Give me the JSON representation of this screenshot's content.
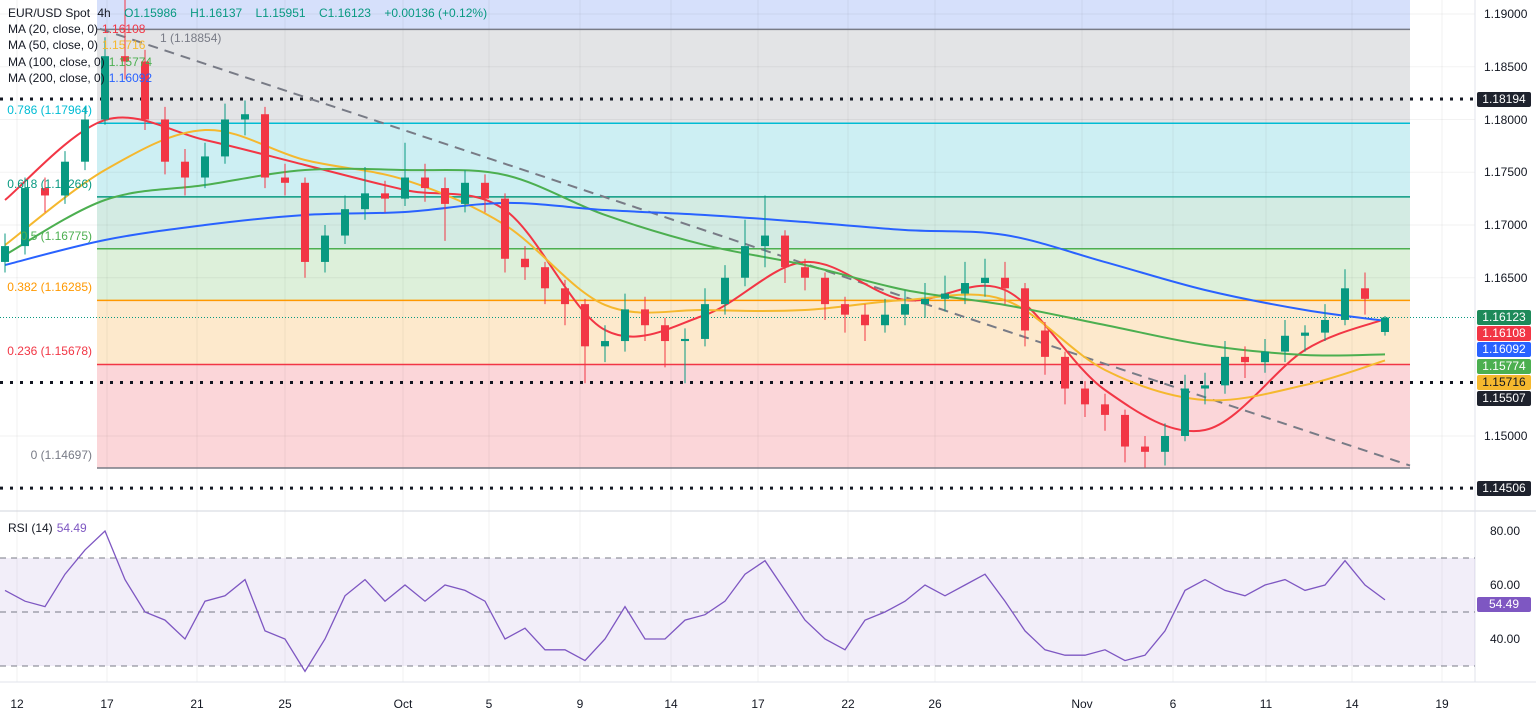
{
  "header": {
    "symbol": "EUR/USD Spot",
    "interval": "4h",
    "open": "O1.15986",
    "high": "H1.16137",
    "low": "L1.15951",
    "close": "C1.16123",
    "change": "+0.00136 (+0.12%)"
  },
  "indicators": [
    {
      "label": "MA (20, close, 0)",
      "value": "1.16108",
      "color": "#f23645"
    },
    {
      "label": "MA (50, close, 0)",
      "value": "1.15716",
      "color": "#f5b82e"
    },
    {
      "label": "MA (100, close, 0)",
      "value": "1.15774",
      "color": "#4caf50"
    },
    {
      "label": "MA (200, close, 0)",
      "value": "1.16092",
      "color": "#2962ff"
    }
  ],
  "rsi": {
    "label": "RSI (14)",
    "value": "54.49",
    "color": "#7e57c2",
    "upper": 70,
    "middle": 50,
    "lower": 30,
    "axis_ticks": [
      "80.00",
      "60.00",
      "40.00"
    ]
  },
  "price_labels": [
    {
      "text": "1.16123",
      "price": 1.16123,
      "color": "#1e8a5a"
    },
    {
      "text": "1.16108",
      "price": 1.16108,
      "color": "#f23645"
    },
    {
      "text": "1.16092",
      "price": 1.16092,
      "color": "#2962ff"
    },
    {
      "text": "1.15774",
      "price": 1.15774,
      "color": "#4caf50"
    },
    {
      "text": "1.15716",
      "price": 1.15716,
      "color": "#f5b82e"
    },
    {
      "text": "1.15507",
      "price": 1.15507,
      "color": "#1e222d"
    },
    {
      "text": "1.18194",
      "price": 1.18194,
      "color": "#1e222d"
    },
    {
      "text": "1.14506",
      "price": 1.14506,
      "color": "#1e222d"
    }
  ],
  "price_axis_ticks": [
    "1.19000",
    "1.18500",
    "1.18000",
    "1.17500",
    "1.17000",
    "1.16500",
    "1.15000"
  ],
  "fib_levels": [
    {
      "label": "1 (1.18854)",
      "price": 1.18854,
      "color": "#787b86",
      "fill": "#e3e4e6"
    },
    {
      "label": "0.786 (1.17964)",
      "price": 1.17964,
      "color": "#00bcd4",
      "fill": "#cdeff3"
    },
    {
      "label": "0.618 (1.17266)",
      "price": 1.17266,
      "color": "#089981",
      "fill": "#d3ebe3"
    },
    {
      "label": "0.5 (1.16775)",
      "price": 1.16775,
      "color": "#4caf50",
      "fill": "#ddf0da"
    },
    {
      "label": "0.382 (1.16285)",
      "price": 1.16285,
      "color": "#ff9800",
      "fill": "#fde9cc"
    },
    {
      "label": "0.236 (1.15678)",
      "price": 1.15678,
      "color": "#f23645",
      "fill": "#fbd6d9"
    },
    {
      "label": "0 (1.14697)",
      "price": 1.14697,
      "color": "#787b86",
      "fill": null
    }
  ],
  "horizontal_lines": [
    1.18194,
    1.15507,
    1.14506
  ],
  "x_axis_labels": [
    {
      "text": "12",
      "at_bar": 0.6
    },
    {
      "text": "17",
      "at_bar": 5.1
    },
    {
      "text": "21",
      "at_bar": 9.6
    },
    {
      "text": "25",
      "at_bar": 14
    },
    {
      "text": "Oct",
      "at_bar": 19.9
    },
    {
      "text": "5",
      "at_bar": 24.2
    },
    {
      "text": "9",
      "at_bar": 28.75
    },
    {
      "text": "14",
      "at_bar": 33.3
    },
    {
      "text": "17",
      "at_bar": 37.65
    },
    {
      "text": "22",
      "at_bar": 42.15
    },
    {
      "text": "26",
      "at_bar": 46.5
    },
    {
      "text": "Nov",
      "at_bar": 53.85
    },
    {
      "text": "6",
      "at_bar": 58.4
    },
    {
      "text": "11",
      "at_bar": 63.05
    },
    {
      "text": "14",
      "at_bar": 67.35
    },
    {
      "text": "19",
      "at_bar": 71.85
    }
  ],
  "chart_data": {
    "type": "candlestick",
    "up_color": "#089981",
    "down_color": "#f23645",
    "ylim": [
      1.1433,
      1.1913
    ],
    "trendline": {
      "from": {
        "bar": 4.75,
        "price": 1.1886
      },
      "to": {
        "bar": 70.25,
        "price": 1.1472
      }
    },
    "ohlc": [
      [
        1.1665,
        1.1692,
        1.1655,
        1.168
      ],
      [
        1.168,
        1.1745,
        1.1672,
        1.1735
      ],
      [
        1.1735,
        1.1745,
        1.1712,
        1.1728
      ],
      [
        1.1728,
        1.177,
        1.172,
        1.176
      ],
      [
        1.176,
        1.1812,
        1.1752,
        1.18
      ],
      [
        1.18,
        1.1878,
        1.1795,
        1.186
      ],
      [
        1.186,
        1.1919,
        1.1838,
        1.1855
      ],
      [
        1.1855,
        1.1866,
        1.179,
        1.18
      ],
      [
        1.18,
        1.1812,
        1.1748,
        1.176
      ],
      [
        1.176,
        1.1772,
        1.1728,
        1.1745
      ],
      [
        1.1745,
        1.1778,
        1.1735,
        1.1765
      ],
      [
        1.1765,
        1.1815,
        1.1758,
        1.18
      ],
      [
        1.18,
        1.1818,
        1.1785,
        1.1805
      ],
      [
        1.1805,
        1.1812,
        1.1735,
        1.1745
      ],
      [
        1.1745,
        1.1758,
        1.1728,
        1.174
      ],
      [
        1.174,
        1.1745,
        1.165,
        1.1665
      ],
      [
        1.1665,
        1.17,
        1.1655,
        1.169
      ],
      [
        1.169,
        1.1728,
        1.1682,
        1.1715
      ],
      [
        1.1715,
        1.1755,
        1.1705,
        1.173
      ],
      [
        1.173,
        1.1742,
        1.1712,
        1.1725
      ],
      [
        1.1725,
        1.1778,
        1.1718,
        1.1745
      ],
      [
        1.1745,
        1.1758,
        1.1722,
        1.1735
      ],
      [
        1.1735,
        1.1745,
        1.1685,
        1.172
      ],
      [
        1.172,
        1.1752,
        1.1712,
        1.174
      ],
      [
        1.174,
        1.1748,
        1.1712,
        1.1725
      ],
      [
        1.1725,
        1.173,
        1.1655,
        1.1668
      ],
      [
        1.1668,
        1.168,
        1.1648,
        1.166
      ],
      [
        1.166,
        1.1665,
        1.1625,
        1.164
      ],
      [
        1.164,
        1.1648,
        1.1605,
        1.1625
      ],
      [
        1.1625,
        1.163,
        1.155,
        1.1585
      ],
      [
        1.1585,
        1.1605,
        1.157,
        1.159
      ],
      [
        1.159,
        1.1635,
        1.158,
        1.162
      ],
      [
        1.162,
        1.1632,
        1.159,
        1.1605
      ],
      [
        1.1605,
        1.1612,
        1.1565,
        1.159
      ],
      [
        1.159,
        1.1602,
        1.155,
        1.1592
      ],
      [
        1.1592,
        1.164,
        1.1585,
        1.1625
      ],
      [
        1.1625,
        1.1662,
        1.1615,
        1.165
      ],
      [
        1.165,
        1.1705,
        1.1642,
        1.168
      ],
      [
        1.168,
        1.1728,
        1.166,
        1.169
      ],
      [
        1.169,
        1.1695,
        1.1645,
        1.166
      ],
      [
        1.166,
        1.1668,
        1.1638,
        1.165
      ],
      [
        1.165,
        1.1655,
        1.161,
        1.1625
      ],
      [
        1.1625,
        1.1632,
        1.1598,
        1.1615
      ],
      [
        1.1615,
        1.1625,
        1.159,
        1.1605
      ],
      [
        1.1605,
        1.163,
        1.1598,
        1.1615
      ],
      [
        1.1615,
        1.1638,
        1.1605,
        1.1625
      ],
      [
        1.1625,
        1.1645,
        1.1612,
        1.163
      ],
      [
        1.163,
        1.1652,
        1.1618,
        1.1635
      ],
      [
        1.1635,
        1.1665,
        1.1625,
        1.1645
      ],
      [
        1.1645,
        1.1668,
        1.1632,
        1.165
      ],
      [
        1.165,
        1.1665,
        1.1625,
        1.164
      ],
      [
        1.164,
        1.1645,
        1.1585,
        1.16
      ],
      [
        1.16,
        1.1608,
        1.1558,
        1.1575
      ],
      [
        1.1575,
        1.158,
        1.153,
        1.1545
      ],
      [
        1.1545,
        1.1552,
        1.1518,
        1.153
      ],
      [
        1.153,
        1.154,
        1.1505,
        1.152
      ],
      [
        1.152,
        1.1525,
        1.1475,
        1.149
      ],
      [
        1.149,
        1.15,
        1.147,
        1.1485
      ],
      [
        1.1485,
        1.1512,
        1.1472,
        1.15
      ],
      [
        1.15,
        1.1558,
        1.1495,
        1.1545
      ],
      [
        1.1545,
        1.156,
        1.153,
        1.1548
      ],
      [
        1.1548,
        1.159,
        1.154,
        1.1575
      ],
      [
        1.1575,
        1.1585,
        1.1555,
        1.157
      ],
      [
        1.157,
        1.1592,
        1.156,
        1.158
      ],
      [
        1.158,
        1.161,
        1.157,
        1.1595
      ],
      [
        1.1595,
        1.1605,
        1.158,
        1.1598
      ],
      [
        1.1598,
        1.1625,
        1.159,
        1.161
      ],
      [
        1.161,
        1.1658,
        1.1605,
        1.164
      ],
      [
        1.164,
        1.1655,
        1.1615,
        1.163
      ],
      [
        1.15986,
        1.16137,
        1.15951,
        1.16123
      ]
    ],
    "ma_sample_bars": [
      0,
      5,
      10,
      15,
      20,
      25,
      30,
      35,
      40,
      45,
      50,
      55,
      60,
      65,
      69
    ],
    "moving_averages": [
      {
        "name": "MA 20",
        "color": "#f23645",
        "values": [
          1.17237,
          1.17995,
          1.17806,
          1.17569,
          1.17332,
          1.17142,
          1.16005,
          1.16147,
          1.16649,
          1.16289,
          1.16384,
          1.15436,
          1.15057,
          1.15815,
          1.16108
        ]
      },
      {
        "name": "MA 50",
        "color": "#f5b82e",
        "values": [
          1.1681,
          1.17521,
          1.179,
          1.17616,
          1.17427,
          1.17,
          1.16242,
          1.16194,
          1.16194,
          1.16289,
          1.16289,
          1.15626,
          1.15341,
          1.15483,
          1.15716
        ]
      },
      {
        "name": "MA 100",
        "color": "#4caf50",
        "values": [
          1.16716,
          1.17237,
          1.17379,
          1.17521,
          1.17521,
          1.17474,
          1.17095,
          1.1681,
          1.16621,
          1.16384,
          1.16242,
          1.16052,
          1.15863,
          1.15768,
          1.15774
        ]
      },
      {
        "name": "MA 200",
        "color": "#2962ff",
        "values": [
          1.16621,
          1.16858,
          1.17,
          1.17095,
          1.17123,
          1.17209,
          1.17142,
          1.17095,
          1.17028,
          1.16953,
          1.16905,
          1.16649,
          1.16384,
          1.16194,
          1.16092
        ]
      }
    ],
    "rsi_values": [
      58,
      54,
      52,
      64,
      73,
      80,
      62,
      50,
      47,
      40,
      54,
      56,
      62,
      43,
      40,
      28,
      40,
      56,
      62,
      54,
      60,
      54,
      60,
      58,
      54,
      40,
      44,
      36,
      36,
      32,
      40,
      52,
      40,
      40,
      47,
      49,
      54,
      64,
      69,
      58,
      47,
      40,
      36,
      47,
      50,
      54,
      60,
      56,
      60,
      64,
      54,
      43,
      36,
      34,
      34,
      36,
      32,
      34,
      43,
      58,
      62,
      58,
      56,
      60,
      62,
      58,
      60,
      69,
      60,
      54.49
    ]
  }
}
